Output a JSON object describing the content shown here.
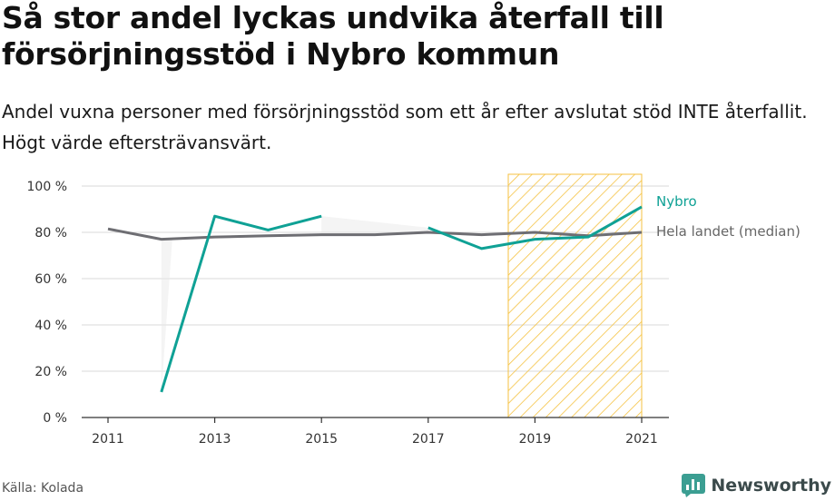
{
  "title": "Så stor andel lyckas undvika återfall till försörjningsstöd i Nybro kommun",
  "subtitle": "Andel vuxna personer med försörjningsstöd som ett år efter avslutat stöd INTE återfallit. Högt värde eftersträvansvärt.",
  "source": "Källa: Kolada",
  "brand": "Newsworthy",
  "colors": {
    "nybro": "#0fa195",
    "median": "#6e6e73",
    "grid": "#d9d9d9",
    "hatch": "#f5c242",
    "shade": "#e9e9e9"
  },
  "chart_data": {
    "type": "line",
    "x": [
      2011,
      2012,
      2013,
      2014,
      2015,
      2016,
      2017,
      2018,
      2019,
      2020,
      2021
    ],
    "series": [
      {
        "name": "Nybro",
        "values": [
          null,
          11,
          87,
          81,
          87,
          null,
          82,
          73,
          77,
          78,
          91
        ]
      },
      {
        "name": "Hela landet (median)",
        "values": [
          81.5,
          77,
          78,
          78.5,
          79,
          79,
          80,
          79,
          80,
          78.5,
          80
        ]
      }
    ],
    "x_ticks": [
      "2011",
      "2013",
      "2015",
      "2017",
      "2019",
      "2021"
    ],
    "y_ticks": [
      "0 %",
      "20 %",
      "40 %",
      "60 %",
      "80 %",
      "100 %"
    ],
    "ylim": [
      0,
      100
    ],
    "grid": true,
    "highlight_range": [
      2018.5,
      2021
    ],
    "legend": "direct labels at line ends"
  }
}
